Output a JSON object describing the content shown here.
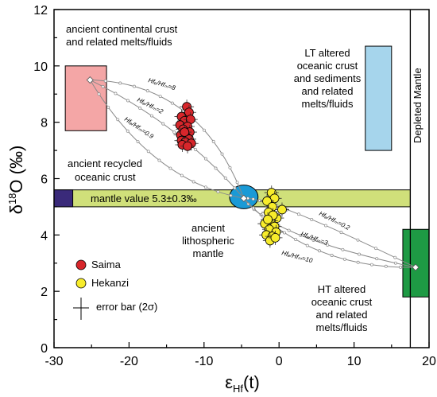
{
  "chart_data": {
    "type": "scatter",
    "xlabel_main": "ε",
    "xlabel_sub": "Hf",
    "xlabel_tail": "(t)",
    "ylabel_main": "δ",
    "ylabel_sup": "18",
    "ylabel_tail": "O (‰)",
    "xlim": [
      -30,
      20
    ],
    "ylim": [
      0,
      12
    ],
    "x_ticks": [
      -30,
      -20,
      -10,
      0,
      10,
      20
    ],
    "y_ticks": [
      0,
      2,
      4,
      6,
      8,
      10,
      12
    ],
    "grid": false,
    "legend_placement": "lower-left",
    "colors": {
      "saima": "#d7262b",
      "hekanzi": "#f7ec2b",
      "continental_box": "#f4a6a6",
      "lt_box": "#a6d5ec",
      "ht_box": "#1e9a44",
      "mantle_band": "#d0e07a",
      "recycled_box": "#3a2a7a",
      "lithospheric_mantle": "#1a9ad6"
    },
    "annotations": {
      "continental": [
        "ancient continental crust",
        "and related melts/fluids"
      ],
      "lt": [
        "LT altered",
        "oceanic crust",
        "and sediments",
        "and related",
        "melts/fluids"
      ],
      "depleted": "Depleted Mantle",
      "recycled": [
        "ancient recycled",
        "oceanic crust"
      ],
      "mantle_value": "mantle value 5.3±0.3‰",
      "litho": [
        "ancient",
        "lithospheric",
        "mantle"
      ],
      "ht": [
        "HT altered",
        "oceanic crust",
        "and related",
        "melts/fluids"
      ],
      "error_bar": "error bar (2σ)"
    },
    "curve_labels": {
      "c8": "Hfₑ/Hfₘ=8",
      "c2": "Hfₑ/Hfₘ=2",
      "c09": "Hfₑ/Hfₘ=0.9",
      "c02": "Hfₑ/Hfₘ=0.2",
      "c3": "Hfₑ/Hfₘ=3",
      "c10": "Hfₑ/Hfₘ=10"
    },
    "regions": {
      "continental_box": {
        "x": [
          -28.5,
          -23
        ],
        "y": [
          7.7,
          10.0
        ]
      },
      "lt_box": {
        "x": [
          11.5,
          15
        ],
        "y": [
          7.0,
          10.7
        ]
      },
      "ht_box": {
        "x": [
          16.5,
          20
        ],
        "y": [
          1.8,
          4.2
        ]
      },
      "mantle_band": {
        "y": [
          5.0,
          5.6
        ]
      },
      "recycled_box": {
        "x": [
          -30,
          -27.5
        ],
        "y": [
          5.0,
          5.6
        ]
      },
      "depleted_line_x": 17.5,
      "lithospheric_mantle": {
        "cx": -4.7,
        "cy": 5.35,
        "rx": 1.9,
        "ry": 0.42
      }
    },
    "endmembers": {
      "crust": [
        -25.2,
        9.5
      ],
      "mantle": [
        -4.7,
        5.3
      ],
      "ht": [
        18.2,
        2.85
      ]
    },
    "series": [
      {
        "name": "Saima",
        "points": [
          [
            -12.3,
            8.55
          ],
          [
            -12.0,
            8.35
          ],
          [
            -13.0,
            8.2
          ],
          [
            -12.6,
            8.05
          ],
          [
            -11.8,
            8.1
          ],
          [
            -13.2,
            7.9
          ],
          [
            -12.2,
            7.85
          ],
          [
            -12.8,
            7.75
          ],
          [
            -11.9,
            7.65
          ],
          [
            -13.1,
            7.55
          ],
          [
            -12.4,
            7.5
          ],
          [
            -12.0,
            7.4
          ],
          [
            -13.0,
            7.35
          ],
          [
            -12.5,
            7.3
          ],
          [
            -11.7,
            7.25
          ],
          [
            -12.9,
            7.2
          ],
          [
            -12.2,
            7.15
          ],
          [
            -12.6,
            7.65
          ]
        ]
      },
      {
        "name": "Hekanzi",
        "points": [
          [
            -1.0,
            5.5
          ],
          [
            -0.6,
            5.3
          ],
          [
            -1.6,
            5.2
          ],
          [
            0.4,
            4.9
          ],
          [
            -0.9,
            5.0
          ],
          [
            -1.4,
            4.8
          ],
          [
            -0.3,
            4.6
          ],
          [
            -1.1,
            4.5
          ],
          [
            -1.9,
            4.4
          ],
          [
            -0.6,
            4.3
          ],
          [
            -1.3,
            4.2
          ],
          [
            -0.4,
            4.1
          ],
          [
            -1.7,
            4.0
          ],
          [
            -0.9,
            3.95
          ],
          [
            -1.2,
            3.8
          ],
          [
            -0.8,
            4.7
          ],
          [
            -1.5,
            4.55
          ],
          [
            -0.5,
            3.9
          ]
        ]
      }
    ]
  }
}
